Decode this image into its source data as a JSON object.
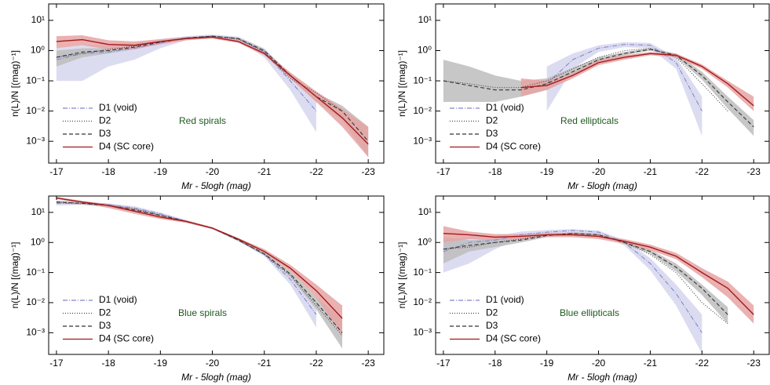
{
  "chart_data": [
    {
      "type": "line",
      "annotation": "Red spirals",
      "annotation_color": "#1f5a1f",
      "x_label": "Mr - 5logh  (mag)",
      "y_label": "n(L)/N  [(mag)⁻¹]",
      "xlim": [
        -16.85,
        -23.3
      ],
      "xticks": [
        -17,
        -18,
        -19,
        -20,
        -21,
        -22,
        -23
      ],
      "ylim": [
        0.00019,
        35
      ],
      "log_y": true,
      "yticks": [
        {
          "value": 0.001,
          "label": "10⁻³"
        },
        {
          "value": 0.01,
          "label": "10⁻²"
        },
        {
          "value": 0.1,
          "label": "10⁻¹"
        },
        {
          "value": 1,
          "label": "10⁰"
        },
        {
          "value": 10,
          "label": "10¹"
        }
      ],
      "x": [
        -17,
        -17.5,
        -18,
        -18.5,
        -19,
        -19.5,
        -20,
        -20.5,
        -21,
        -21.5,
        -22,
        -22.5,
        -23
      ],
      "series": [
        {
          "name": "D1 (void)",
          "color": "#8585cc",
          "dash": "dashdot",
          "band_color": "#d6d6ee",
          "values": [
            0.5,
            0.8,
            0.9,
            1.2,
            1.8,
            2.6,
            3.0,
            2.5,
            0.9,
            0.1,
            0.01,
            null,
            null
          ],
          "lower": [
            0.1,
            0.1,
            0.3,
            0.5,
            1.2,
            2.2,
            2.6,
            2.1,
            0.6,
            0.05,
            0.002,
            null,
            null
          ],
          "upper": [
            1.2,
            1.5,
            1.5,
            1.8,
            2.4,
            3.0,
            3.4,
            2.9,
            1.2,
            0.15,
            0.02,
            null,
            null
          ]
        },
        {
          "name": "D2",
          "color": "#444444",
          "dash": "dotted",
          "values": [
            0.6,
            0.8,
            1.1,
            1.4,
            2.0,
            2.6,
            3.0,
            2.4,
            0.9,
            0.12,
            0.04,
            0.01,
            null
          ]
        },
        {
          "name": "D3",
          "color": "#333333",
          "dash": "dashed",
          "band_color": "#bdbdbd",
          "values": [
            0.6,
            0.9,
            1.0,
            1.3,
            1.9,
            2.6,
            3.0,
            2.5,
            1.0,
            0.15,
            0.03,
            0.01,
            0.001
          ],
          "lower": [
            0.3,
            0.6,
            0.8,
            1.1,
            1.7,
            2.4,
            2.8,
            2.3,
            0.85,
            0.12,
            0.02,
            0.005,
            0.0003
          ],
          "upper": [
            1.0,
            1.2,
            1.2,
            1.5,
            2.1,
            2.8,
            3.2,
            2.7,
            1.1,
            0.18,
            0.04,
            0.015,
            0.003
          ]
        },
        {
          "name": "D4 (SC core)",
          "color": "#a3191c",
          "dash": "solid",
          "band_color": "#e6a3a3",
          "values": [
            2.0,
            2.3,
            1.6,
            1.5,
            2.0,
            2.5,
            2.8,
            2.0,
            0.8,
            0.15,
            0.03,
            0.006,
            0.0008
          ],
          "lower": [
            1.2,
            1.5,
            1.1,
            1.1,
            1.6,
            2.2,
            2.5,
            1.8,
            0.7,
            0.12,
            0.02,
            0.003,
            0.0003
          ],
          "upper": [
            3.0,
            3.2,
            2.2,
            2.0,
            2.4,
            2.8,
            3.1,
            2.3,
            0.95,
            0.19,
            0.045,
            0.012,
            0.003
          ]
        }
      ]
    },
    {
      "type": "line",
      "annotation": "Red ellipticals",
      "annotation_color": "#1f5a1f",
      "x_label": "Mr - 5logh  (mag)",
      "y_label": "n(L)/N  [(mag)⁻¹]",
      "xlim": [
        -16.85,
        -23.3
      ],
      "xticks": [
        -17,
        -18,
        -19,
        -20,
        -21,
        -22,
        -23
      ],
      "ylim": [
        0.00019,
        35
      ],
      "log_y": true,
      "yticks": [
        {
          "value": 0.001,
          "label": "10⁻³"
        },
        {
          "value": 0.01,
          "label": "10⁻²"
        },
        {
          "value": 0.1,
          "label": "10⁻¹"
        },
        {
          "value": 1,
          "label": "10⁰"
        },
        {
          "value": 10,
          "label": "10¹"
        }
      ],
      "x": [
        -17,
        -17.5,
        -18,
        -18.5,
        -19,
        -19.5,
        -20,
        -20.5,
        -21,
        -21.5,
        -22,
        -22.5,
        -23
      ],
      "series": [
        {
          "name": "D1 (void)",
          "color": "#8585cc",
          "dash": "dashdot",
          "band_color": "#d6d6ee",
          "values": [
            null,
            null,
            null,
            null,
            0.08,
            0.5,
            1.2,
            1.6,
            1.5,
            0.4,
            0.01,
            null,
            null
          ],
          "lower": [
            null,
            null,
            null,
            null,
            0.01,
            0.25,
            0.9,
            1.3,
            1.2,
            0.25,
            0.0015,
            null,
            null
          ],
          "upper": [
            null,
            null,
            null,
            null,
            0.3,
            0.8,
            1.5,
            1.9,
            1.8,
            0.6,
            0.03,
            null,
            null
          ]
        },
        {
          "name": "D2",
          "color": "#444444",
          "dash": "dotted",
          "values": [
            0.1,
            0.08,
            0.06,
            0.06,
            0.1,
            0.25,
            0.6,
            1.0,
            1.2,
            0.6,
            0.08,
            0.01,
            null
          ]
        },
        {
          "name": "D3",
          "color": "#333333",
          "dash": "dashed",
          "band_color": "#bdbdbd",
          "values": [
            0.1,
            0.07,
            0.05,
            0.05,
            0.08,
            0.2,
            0.5,
            0.8,
            1.1,
            0.7,
            0.15,
            0.02,
            0.003
          ],
          "lower": [
            0.02,
            0.02,
            0.02,
            0.03,
            0.05,
            0.15,
            0.4,
            0.7,
            1.0,
            0.6,
            0.11,
            0.012,
            0.0015
          ],
          "upper": [
            0.5,
            0.3,
            0.15,
            0.1,
            0.12,
            0.27,
            0.6,
            0.9,
            1.2,
            0.8,
            0.2,
            0.03,
            0.005
          ]
        },
        {
          "name": "D4 (SC core)",
          "color": "#a3191c",
          "dash": "solid",
          "band_color": "#e6a3a3",
          "values": [
            null,
            null,
            null,
            0.06,
            0.07,
            0.15,
            0.4,
            0.6,
            0.8,
            0.7,
            0.3,
            0.08,
            0.015
          ],
          "lower": [
            null,
            null,
            null,
            0.03,
            0.05,
            0.12,
            0.33,
            0.5,
            0.7,
            0.6,
            0.25,
            0.06,
            0.01
          ],
          "upper": [
            null,
            null,
            null,
            0.12,
            0.1,
            0.18,
            0.5,
            0.7,
            0.9,
            0.8,
            0.35,
            0.1,
            0.03
          ]
        }
      ]
    },
    {
      "type": "line",
      "annotation": "Blue spirals",
      "annotation_color": "#1f5a1f",
      "x_label": "Mr - 5logh  (mag)",
      "y_label": "n(L)/N  [(mag)⁻¹]",
      "xlim": [
        -16.85,
        -23.3
      ],
      "xticks": [
        -17,
        -18,
        -19,
        -20,
        -21,
        -22,
        -23
      ],
      "ylim": [
        0.00019,
        35
      ],
      "log_y": true,
      "yticks": [
        {
          "value": 0.001,
          "label": "10⁻³"
        },
        {
          "value": 0.01,
          "label": "10⁻²"
        },
        {
          "value": 0.1,
          "label": "10⁻¹"
        },
        {
          "value": 1,
          "label": "10⁰"
        },
        {
          "value": 10,
          "label": "10¹"
        }
      ],
      "x": [
        -17,
        -17.5,
        -18,
        -18.5,
        -19,
        -19.5,
        -20,
        -20.5,
        -21,
        -21.5,
        -22,
        -22.5,
        -23
      ],
      "series": [
        {
          "name": "D1 (void)",
          "color": "#8585cc",
          "dash": "dashdot",
          "band_color": "#d6d6ee",
          "values": [
            20,
            20,
            18,
            14,
            9,
            5,
            3,
            1.2,
            0.4,
            0.06,
            0.004,
            null,
            null
          ],
          "lower": [
            17,
            18,
            16,
            12,
            8,
            4.5,
            2.8,
            1.1,
            0.35,
            0.04,
            0.0015,
            null,
            null
          ],
          "upper": [
            24,
            22,
            20,
            16,
            10,
            5.5,
            3.2,
            1.3,
            0.45,
            0.08,
            0.008,
            null,
            null
          ]
        },
        {
          "name": "D2",
          "color": "#444444",
          "dash": "dotted",
          "values": [
            22,
            20,
            17,
            13,
            8,
            5,
            3,
            1.2,
            0.4,
            0.08,
            0.008,
            0.0008,
            null
          ]
        },
        {
          "name": "D3",
          "color": "#333333",
          "dash": "dashed",
          "band_color": "#bdbdbd",
          "values": [
            22,
            20,
            17,
            12,
            8,
            5,
            3,
            1.2,
            0.42,
            0.09,
            0.01,
            0.001,
            null
          ],
          "lower": [
            20,
            18,
            15,
            11,
            7,
            4.5,
            2.8,
            1.1,
            0.38,
            0.07,
            0.006,
            0.0003,
            null
          ],
          "upper": [
            25,
            22,
            19,
            14,
            9,
            5.5,
            3.2,
            1.3,
            0.46,
            0.11,
            0.015,
            0.003,
            null
          ]
        },
        {
          "name": "D4 (SC core)",
          "color": "#a3191c",
          "dash": "solid",
          "band_color": "#e6a3a3",
          "values": [
            30,
            22,
            17,
            11,
            7,
            5,
            3,
            1.3,
            0.5,
            0.14,
            0.025,
            0.003,
            null
          ],
          "lower": [
            28,
            20,
            14,
            9,
            6,
            4.5,
            2.8,
            1.2,
            0.45,
            0.11,
            0.015,
            0.0008,
            null
          ],
          "upper": [
            33,
            24,
            19,
            13,
            8,
            5.5,
            3.2,
            1.4,
            0.6,
            0.18,
            0.04,
            0.008,
            null
          ]
        }
      ]
    },
    {
      "type": "line",
      "annotation": "Blue ellipticals",
      "annotation_color": "#1f5a1f",
      "x_label": "Mr - 5logh  (mag)",
      "y_label": "n(L)/N  [(mag)⁻¹]",
      "xlim": [
        -16.85,
        -23.3
      ],
      "xticks": [
        -17,
        -18,
        -19,
        -20,
        -21,
        -22,
        -23
      ],
      "ylim": [
        0.00019,
        35
      ],
      "log_y": true,
      "yticks": [
        {
          "value": 0.001,
          "label": "10⁻³"
        },
        {
          "value": 0.01,
          "label": "10⁻²"
        },
        {
          "value": 0.1,
          "label": "10⁻¹"
        },
        {
          "value": 1,
          "label": "10⁰"
        },
        {
          "value": 10,
          "label": "10¹"
        }
      ],
      "x": [
        -17,
        -17.5,
        -18,
        -18.5,
        -19,
        -19.5,
        -20,
        -20.5,
        -21,
        -21.5,
        -22,
        -22.5,
        -23
      ],
      "series": [
        {
          "name": "D1 (void)",
          "color": "#8585cc",
          "dash": "dashdot",
          "band_color": "#d6d6ee",
          "values": [
            0.5,
            1.0,
            1.2,
            1.8,
            2.2,
            2.5,
            2.2,
            1.0,
            0.2,
            0.02,
            0.001,
            null,
            null
          ],
          "lower": [
            0.1,
            0.2,
            0.6,
            1.4,
            1.8,
            2.2,
            1.9,
            0.8,
            0.12,
            0.008,
            0.0002,
            null,
            null
          ],
          "upper": [
            1.2,
            1.6,
            1.6,
            2.3,
            2.6,
            2.8,
            2.5,
            1.2,
            0.3,
            0.04,
            0.004,
            null,
            null
          ]
        },
        {
          "name": "D2",
          "color": "#444444",
          "dash": "dotted",
          "values": [
            0.6,
            0.7,
            1.0,
            1.3,
            1.8,
            2.0,
            1.8,
            1.0,
            0.4,
            0.1,
            0.01,
            0.002,
            null
          ]
        },
        {
          "name": "D3",
          "color": "#333333",
          "dash": "dashed",
          "band_color": "#bdbdbd",
          "values": [
            0.6,
            0.8,
            1.0,
            1.2,
            1.7,
            2.0,
            1.8,
            1.0,
            0.5,
            0.15,
            0.03,
            0.004,
            null
          ],
          "lower": [
            0.2,
            0.5,
            0.7,
            1.0,
            1.5,
            1.8,
            1.6,
            0.9,
            0.42,
            0.11,
            0.018,
            0.002,
            null
          ],
          "upper": [
            1.5,
            1.2,
            1.3,
            1.4,
            1.9,
            2.2,
            2.0,
            1.1,
            0.58,
            0.2,
            0.04,
            0.007,
            null
          ]
        },
        {
          "name": "D4 (SC core)",
          "color": "#a3191c",
          "dash": "solid",
          "band_color": "#e6a3a3",
          "values": [
            2.0,
            1.8,
            1.5,
            1.6,
            1.8,
            1.8,
            1.6,
            1.1,
            0.7,
            0.35,
            0.1,
            0.03,
            0.004
          ],
          "lower": [
            1.0,
            1.3,
            1.2,
            1.3,
            1.5,
            1.5,
            1.3,
            0.9,
            0.55,
            0.28,
            0.07,
            0.015,
            0.002
          ],
          "upper": [
            3.5,
            2.3,
            1.9,
            1.9,
            2.1,
            2.1,
            1.8,
            1.3,
            0.85,
            0.45,
            0.14,
            0.05,
            0.008
          ]
        }
      ]
    }
  ]
}
